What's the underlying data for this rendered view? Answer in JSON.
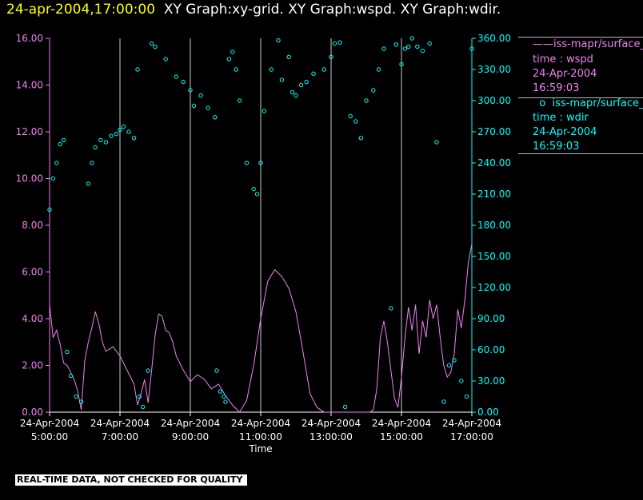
{
  "title": {
    "timestamp": "24-apr-2004,17:00:00",
    "text": "XY Graph:xy-grid.  XY Graph:wspd.  XY Graph:wdir."
  },
  "legend": {
    "wspd": {
      "name": "iss-mapr/surface_",
      "line2": "time : wspd",
      "line3": "24-Apr-2004",
      "line4": "16:59:03"
    },
    "wdir": {
      "name": "iss-mapr/surface_",
      "line2": "time : wdir",
      "line3": "24-Apr-2004",
      "line4": "16:59:03"
    }
  },
  "disclaimer": "REAL-TIME DATA, NOT CHECKED FOR QUALITY",
  "colors": {
    "wspd": "#ee82ee",
    "wdir": "#00ffff",
    "grid": "#ffffff",
    "title_time": "#ffff00"
  },
  "chart_data": {
    "type": "line",
    "xlabel": "Time",
    "xlim": [
      "24-Apr-2004 05:00:00",
      "24-Apr-2004 17:00:00"
    ],
    "x_ticks": [
      {
        "date": "24-Apr-2004",
        "time": "5:00:00"
      },
      {
        "date": "24-Apr-2004",
        "time": "7:00:00"
      },
      {
        "date": "24-Apr-2004",
        "time": "9:00:00"
      },
      {
        "date": "24-Apr-2004",
        "time": "11:00:00"
      },
      {
        "date": "24-Apr-2004",
        "time": "13:00:00"
      },
      {
        "date": "24-Apr-2004",
        "time": "15:00:00"
      },
      {
        "date": "24-Apr-2004",
        "time": "17:00:00"
      }
    ],
    "y_left": {
      "ylim": [
        0,
        16
      ],
      "ticks": [
        "0.00",
        "2.00",
        "4.00",
        "6.00",
        "8.00",
        "10.00",
        "12.00",
        "14.00",
        "16.00"
      ]
    },
    "y_right": {
      "ylim": [
        0,
        360
      ],
      "ticks": [
        "0.00",
        "30.00",
        "60.00",
        "90.00",
        "120.00",
        "150.00",
        "180.00",
        "210.00",
        "240.00",
        "270.00",
        "300.00",
        "330.00",
        "360.00"
      ]
    },
    "grid": "vertical",
    "series": [
      {
        "name": "iss-mapr/surface_ time : wspd",
        "style": "line",
        "axis": "left",
        "x_hours": [
          5.0,
          5.1,
          5.2,
          5.3,
          5.4,
          5.5,
          5.6,
          5.7,
          5.8,
          5.9,
          6.0,
          6.1,
          6.2,
          6.3,
          6.4,
          6.5,
          6.6,
          6.8,
          7.0,
          7.2,
          7.4,
          7.5,
          7.6,
          7.7,
          7.8,
          7.9,
          8.0,
          8.1,
          8.2,
          8.3,
          8.4,
          8.5,
          8.6,
          8.8,
          9.0,
          9.2,
          9.4,
          9.6,
          9.8,
          10.0,
          10.2,
          10.4,
          10.6,
          10.8,
          11.0,
          11.2,
          11.4,
          11.6,
          11.8,
          12.0,
          12.2,
          12.4,
          12.6,
          12.8,
          13.0,
          13.2,
          13.4,
          13.6,
          13.8,
          14.0,
          14.1,
          14.2,
          14.3,
          14.4,
          14.5,
          14.6,
          14.7,
          14.8,
          14.9,
          15.0,
          15.1,
          15.2,
          15.3,
          15.4,
          15.5,
          15.6,
          15.7,
          15.8,
          15.9,
          16.0,
          16.1,
          16.2,
          16.3,
          16.4,
          16.5,
          16.6,
          16.7,
          16.8,
          16.9,
          17.0
        ],
        "values": [
          4.6,
          3.2,
          3.5,
          2.9,
          2.1,
          2.0,
          1.7,
          1.4,
          0.9,
          0.1,
          2.2,
          3.0,
          3.6,
          4.3,
          3.8,
          3.0,
          2.6,
          2.8,
          2.4,
          1.8,
          1.2,
          0.3,
          0.8,
          1.4,
          0.4,
          1.8,
          3.3,
          4.2,
          4.1,
          3.5,
          3.4,
          3.0,
          2.4,
          1.8,
          1.3,
          1.6,
          1.4,
          1.0,
          1.2,
          0.7,
          0.3,
          0.0,
          0.5,
          2.0,
          4.0,
          5.6,
          6.1,
          5.8,
          5.3,
          4.3,
          2.6,
          0.8,
          0.2,
          0.0,
          0.0,
          0.0,
          0.0,
          0.0,
          0.0,
          0.0,
          0.0,
          0.1,
          1.0,
          3.2,
          3.9,
          3.0,
          1.8,
          0.6,
          0.2,
          1.5,
          3.2,
          4.5,
          3.5,
          4.6,
          2.5,
          3.9,
          3.2,
          4.8,
          4.0,
          4.6,
          3.2,
          2.0,
          1.5,
          1.7,
          2.5,
          4.4,
          3.6,
          4.8,
          6.4,
          7.2
        ]
      },
      {
        "name": "iss-mapr/surface_ time : wdir",
        "style": "points",
        "axis": "right",
        "x_hours": [
          5.0,
          5.1,
          5.2,
          5.3,
          5.4,
          5.5,
          5.6,
          5.75,
          5.9,
          6.1,
          6.2,
          6.3,
          6.45,
          6.6,
          6.75,
          6.9,
          7.0,
          7.1,
          7.25,
          7.4,
          7.5,
          7.55,
          7.65,
          7.8,
          7.9,
          8.0,
          8.3,
          8.6,
          8.8,
          9.0,
          9.1,
          9.3,
          9.5,
          9.7,
          9.75,
          9.85,
          9.95,
          10.0,
          10.1,
          10.2,
          10.3,
          10.4,
          10.6,
          10.8,
          10.9,
          11.0,
          11.1,
          11.3,
          11.5,
          11.6,
          11.8,
          11.9,
          12.0,
          12.15,
          12.3,
          12.5,
          12.8,
          13.0,
          13.1,
          13.25,
          13.4,
          13.55,
          13.7,
          13.85,
          14.0,
          14.2,
          14.35,
          14.5,
          14.7,
          14.85,
          15.0,
          15.1,
          15.2,
          15.3,
          15.45,
          15.6,
          15.8,
          16.0,
          16.2,
          16.35,
          16.5,
          16.7,
          16.85,
          17.0
        ],
        "values": [
          195,
          225,
          240,
          258,
          262,
          58,
          35,
          15,
          10,
          220,
          240,
          255,
          262,
          260,
          266,
          268,
          272,
          275,
          270,
          264,
          330,
          15,
          5,
          40,
          355,
          352,
          340,
          323,
          318,
          310,
          295,
          305,
          293,
          284,
          40,
          20,
          15,
          10,
          340,
          347,
          330,
          300,
          240,
          215,
          210,
          240,
          290,
          330,
          358,
          320,
          342,
          308,
          305,
          315,
          318,
          326,
          330,
          342,
          355,
          356,
          5,
          285,
          280,
          264,
          300,
          310,
          330,
          350,
          100,
          354,
          335,
          350,
          352,
          360,
          352,
          348,
          355,
          260,
          10,
          45,
          50,
          30,
          15,
          350
        ]
      }
    ]
  }
}
